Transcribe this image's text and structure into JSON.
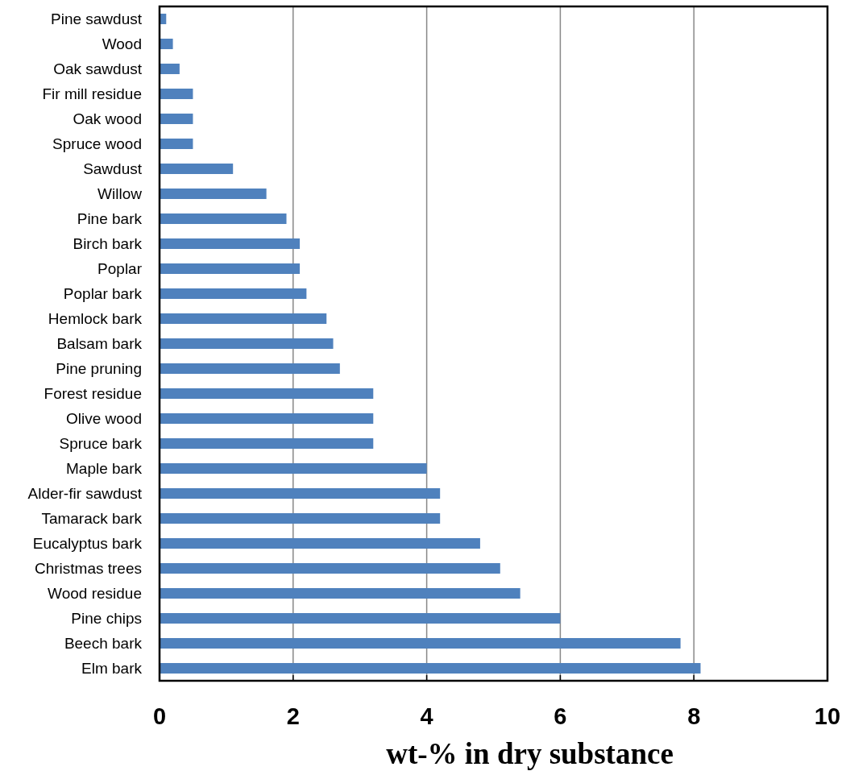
{
  "chart_data": {
    "type": "bar",
    "orientation": "horizontal",
    "xlabel": "wt-% in dry substance",
    "categories": [
      "Pine sawdust",
      "Wood",
      "Oak sawdust",
      "Fir mill residue",
      "Oak wood",
      "Spruce wood",
      "Sawdust",
      "Willow",
      "Pine bark",
      "Birch bark",
      "Poplar",
      "Poplar bark",
      "Hemlock bark",
      "Balsam bark",
      "Pine pruning",
      "Forest residue",
      "Olive wood",
      "Spruce bark",
      "Maple bark",
      "Alder-fir sawdust",
      "Tamarack bark",
      "Eucalyptus bark",
      "Christmas trees",
      "Wood residue",
      "Pine chips",
      "Beech bark",
      "Elm bark"
    ],
    "values": [
      0.1,
      0.2,
      0.3,
      0.5,
      0.5,
      0.5,
      1.1,
      1.6,
      1.9,
      2.1,
      2.1,
      2.2,
      2.5,
      2.6,
      2.7,
      3.2,
      3.2,
      3.2,
      4.0,
      4.2,
      4.2,
      4.8,
      5.1,
      5.4,
      6.0,
      7.8,
      8.1
    ],
    "color": "#4f81bd",
    "xlim": [
      0,
      10
    ],
    "xticks": [
      0,
      2,
      4,
      6,
      8,
      10
    ],
    "grid": "x"
  }
}
